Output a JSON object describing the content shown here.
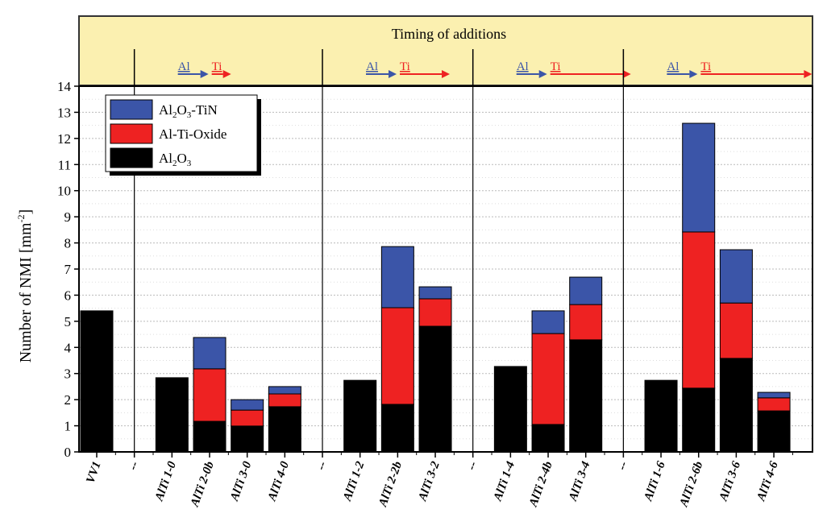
{
  "chart_data": {
    "type": "bar",
    "stacked": true,
    "title": "Timing of additions",
    "ylabel": "Number of NMI [mm",
    "ylabel_sup": "-2",
    "ylabel_end": "]",
    "ylim": [
      0,
      14
    ],
    "yticks": [
      0,
      1,
      2,
      3,
      4,
      5,
      6,
      7,
      8,
      9,
      10,
      11,
      12,
      13,
      14
    ],
    "grid": true,
    "legend_position": "top-left",
    "categories": [
      "VV1",
      "--",
      "AlTi 1-0",
      "AlTi 2-0b",
      "AlTi 3-0",
      "AlTi 4-0",
      "--",
      "AlTi 1-2",
      "AlTi 2-2b",
      "AlTi 3-2",
      "--",
      "AlTi 1-4",
      "AlTi 2-4b",
      "AlTi 3-4",
      "--",
      "AlTi 1-6",
      "AlTi 2-6b",
      "AlTi 3-6",
      "AlTi 4-6"
    ],
    "series": [
      {
        "name": "Al2O3",
        "label_main": "Al",
        "sub1": "2",
        "mid": "O",
        "sub2": "3",
        "tail": "",
        "color": "#000000",
        "values": [
          5.4,
          0,
          2.84,
          1.17,
          0.99,
          1.73,
          0,
          2.74,
          1.82,
          4.81,
          0,
          3.27,
          1.05,
          4.29,
          0,
          2.74,
          2.44,
          3.58,
          1.57
        ]
      },
      {
        "name": "Al-Ti-Oxide",
        "label_main": "Al-Ti-Oxide",
        "sub1": "",
        "mid": "",
        "sub2": "",
        "tail": "",
        "color": "#ee2222",
        "values": [
          0,
          0,
          0,
          2.01,
          0.61,
          0.49,
          0,
          0,
          3.7,
          1.05,
          0,
          0,
          3.48,
          1.35,
          0,
          0,
          5.98,
          2.12,
          0.5
        ]
      },
      {
        "name": "Al2O3-TiN",
        "label_main": "Al",
        "sub1": "2",
        "mid": "O",
        "sub2": "3",
        "tail": "-TiN",
        "color": "#3b55a8",
        "values": [
          0,
          0,
          0,
          1.2,
          0.4,
          0.28,
          0,
          0,
          2.34,
          0.46,
          0,
          0,
          0.87,
          1.05,
          0,
          0,
          4.16,
          2.04,
          0.21
        ]
      }
    ],
    "group_separators_at": [
      1,
      6,
      10,
      14
    ],
    "timing_labels": [
      {
        "a": "Al",
        "b": "Ti",
        "len": 1
      },
      {
        "a": "Al",
        "b": "Ti",
        "len": 2
      },
      {
        "a": "Al",
        "b": "Ti",
        "len": 3
      },
      {
        "a": "Al",
        "b": "Ti",
        "len": 4
      }
    ],
    "colors": {
      "header_bg": "#fbf0b0",
      "al_arrow": "#3b55a8",
      "ti_arrow": "#ee2222"
    }
  }
}
